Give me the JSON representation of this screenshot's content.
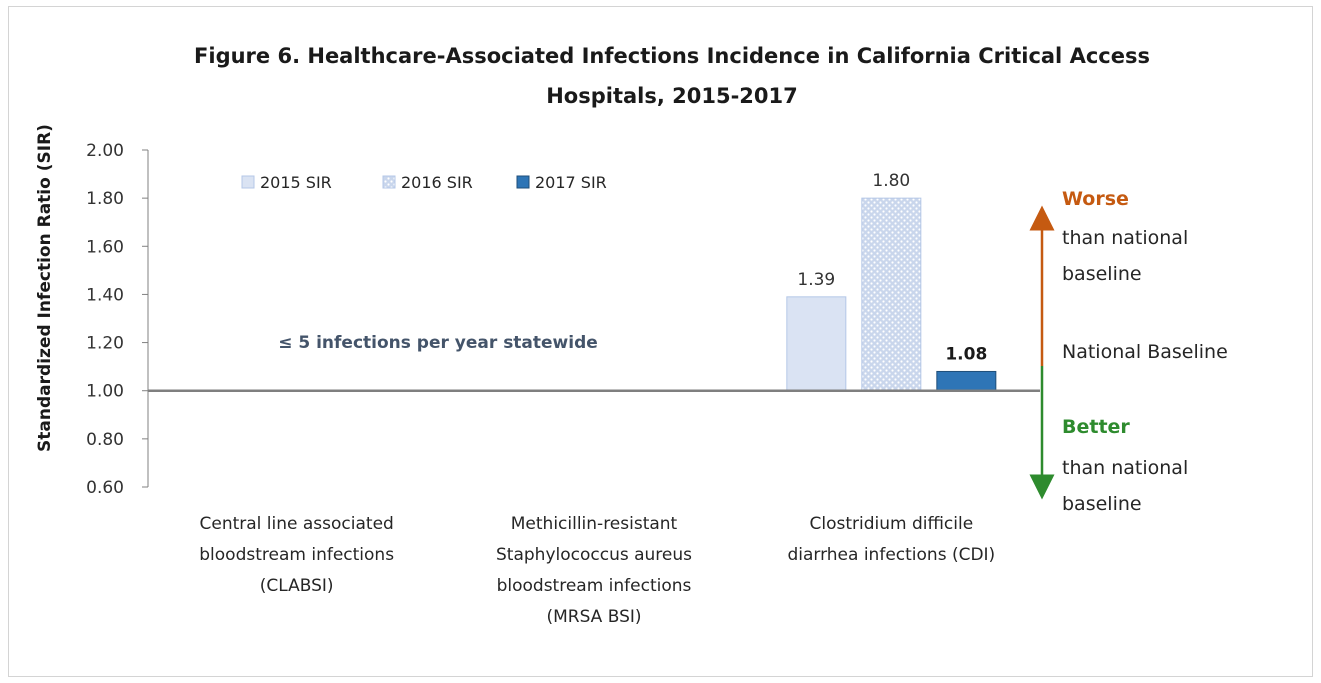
{
  "chart_data": {
    "type": "bar",
    "title_line1": "Figure 6. Healthcare-Associated Infections Incidence in California Critical Access",
    "title_line2": "Hospitals, 2015-2017",
    "ylabel": "Standardized Infection Ratio (SIR)",
    "xlabel": "",
    "ylim": [
      0.6,
      2.0
    ],
    "yticks": [
      "2.00",
      "1.80",
      "1.60",
      "1.40",
      "1.20",
      "1.00",
      "0.80",
      "0.60"
    ],
    "ytick_values": [
      2.0,
      1.8,
      1.6,
      1.4,
      1.2,
      1.0,
      0.8,
      0.6
    ],
    "baseline_value": 1.0,
    "grid": false,
    "legend_position": "top-left",
    "categories": [
      [
        "Central line associated",
        "bloodstream infections",
        "(CLABSI)"
      ],
      [
        "Methicillin-resistant",
        "Staphylococcus aureus",
        "bloodstream infections",
        "(MRSA BSI)"
      ],
      [
        "Clostridium difficile",
        "diarrhea infections (CDI)"
      ]
    ],
    "series": [
      {
        "name": "2015 SIR",
        "values": [
          null,
          null,
          1.39
        ],
        "labels": [
          null,
          null,
          "1.39"
        ],
        "color": "#dae3f3"
      },
      {
        "name": "2016 SIR",
        "values": [
          null,
          null,
          1.8
        ],
        "labels": [
          null,
          null,
          "1.80"
        ],
        "color": "#b4c7e7"
      },
      {
        "name": "2017 SIR",
        "values": [
          null,
          null,
          1.08
        ],
        "labels": [
          null,
          null,
          "1.08"
        ],
        "color": "#2e75b6"
      }
    ],
    "annotation": "≤ 5 infections per year statewide",
    "side_labels": {
      "worse": "Worse",
      "worse_rest": [
        "than national",
        "baseline"
      ],
      "baseline": "National Baseline",
      "better": "Better",
      "better_rest": [
        "than national",
        "baseline"
      ]
    },
    "colors": {
      "worse_arrow": "#c55a11",
      "better_arrow": "#2e8b2e",
      "axis": "#808080"
    }
  }
}
